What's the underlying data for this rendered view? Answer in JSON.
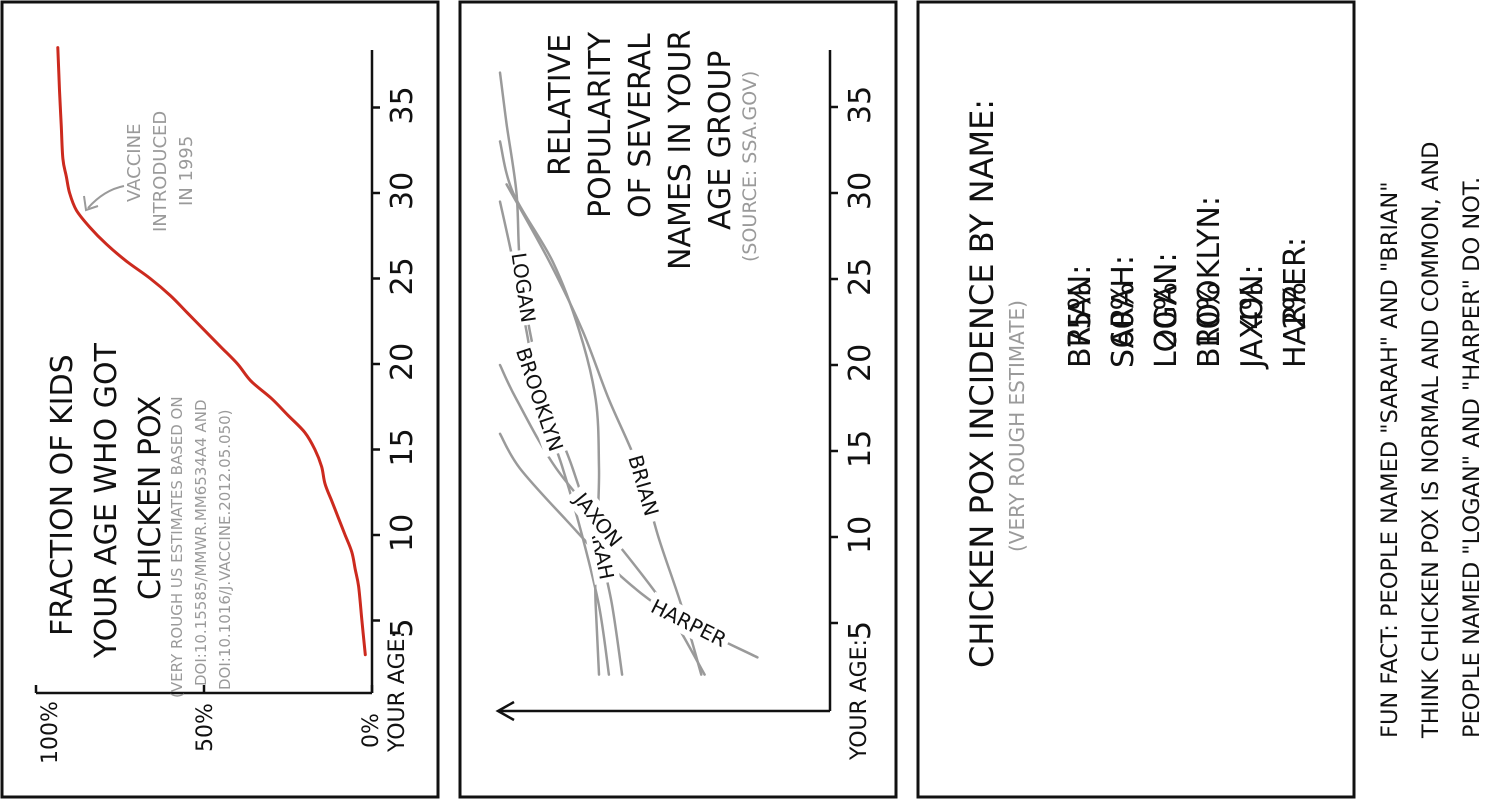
{
  "panel1": {
    "title_lines": [
      "FRACTION OF KIDS",
      "YOUR AGE WHO GOT",
      "CHICKEN POX"
    ],
    "note_lines": [
      "(VERY ROUGH US ESTIMATES BASED ON",
      "DOI:10.15585/MMWR.MM6534A4 AND",
      "DOI:10.1016/J.VACCINE.2012.05.050)"
    ],
    "annotation_lines": [
      "VACCINE",
      "INTRODUCED",
      "IN 1995"
    ],
    "axis_label": "YOUR AGE:",
    "y_tick_labels": [
      "0%",
      "50%",
      "100%"
    ],
    "line_color": "#cc2a1e"
  },
  "panel2": {
    "title_lines": [
      "RELATIVE",
      "POPULARITY",
      "OF SEVERAL",
      "NAMES IN YOUR",
      "AGE GROUP"
    ],
    "source": "(SOURCE: SSA.GOV)",
    "axis_label": "YOUR AGE:",
    "line_color": "#9a9a9a"
  },
  "panel3": {
    "title": "CHICKEN POX INCIDENCE BY NAME:",
    "subtitle": "(VERY ROUGH ESTIMATE)",
    "rows": [
      {
        "name": "BRIAN:",
        "value": "75%"
      },
      {
        "name": "SARAH:",
        "value": "60%"
      },
      {
        "name": "LOGAN:",
        "value": "20%"
      },
      {
        "name": "BROOKLYN:",
        "value": "10%"
      },
      {
        "name": "JAXON:",
        "value": "4%"
      },
      {
        "name": "HARPER:",
        "value": "2%"
      }
    ]
  },
  "fun_fact_lines": [
    "FUN FACT: PEOPLE NAMED \"SARAH\" AND \"BRIAN\"",
    "THINK CHICKEN POX IS NORMAL AND COMMON, AND",
    "PEOPLE NAMED \"LOGAN\" AND \"HARPER\" DO NOT."
  ],
  "chart_data": [
    {
      "type": "line",
      "orientation": "rotated 90deg counter-clockwise",
      "x_ticks": [
        5,
        10,
        15,
        20,
        25,
        30,
        35
      ],
      "y_ticks": [
        "0%",
        "50%",
        "100%"
      ],
      "xlim": [
        0,
        38
      ],
      "ylim": [
        0,
        100
      ],
      "series": [
        {
          "x": [
            3,
            5,
            7,
            8,
            9,
            10,
            11,
            12,
            13,
            14,
            15,
            16,
            17,
            18,
            19,
            20,
            21,
            22,
            23,
            24,
            25,
            26,
            27,
            28,
            29,
            30,
            31,
            32,
            34,
            36,
            38.5
          ],
          "y": [
            2,
            3,
            4,
            5,
            6,
            8,
            10,
            12,
            14,
            15,
            17,
            20,
            25,
            30,
            36,
            40,
            45,
            50,
            55,
            60,
            66,
            73,
            79,
            84,
            88,
            90,
            91,
            92,
            92.5,
            93,
            93.5
          ]
        }
      ]
    },
    {
      "type": "line",
      "orientation": "rotated 90deg counter-clockwise",
      "x_ticks": [
        5,
        10,
        15,
        20,
        25,
        30,
        35
      ],
      "xlim": [
        0,
        38
      ],
      "ylim": [
        0,
        100
      ],
      "series": [
        {
          "name": "BRIAN",
          "x": [
            2,
            6,
            10,
            14,
            18,
            22,
            26,
            30.5
          ],
          "y": [
            39,
            45,
            52,
            58,
            67,
            75,
            85,
            98
          ]
        },
        {
          "name": "SARAH",
          "x": [
            2,
            6,
            10,
            14,
            18,
            22,
            26,
            30,
            33
          ],
          "y": [
            63,
            66,
            70,
            70,
            71,
            76,
            84,
            96,
            100
          ]
        },
        {
          "name": "LOGAN",
          "x": [
            2,
            6,
            10,
            14,
            18,
            22,
            26,
            30,
            34,
            37
          ],
          "y": [
            70,
            71,
            72,
            78,
            86,
            91,
            94,
            95,
            98,
            100
          ]
        },
        {
          "name": "BROOKLYN",
          "x": [
            2,
            6,
            10,
            14,
            18,
            22,
            26,
            29.5
          ],
          "y": [
            67,
            70,
            75,
            81,
            88,
            92,
            96,
            100
          ]
        },
        {
          "name": "JAXON",
          "x": [
            2,
            6,
            10,
            14,
            18,
            20
          ],
          "y": [
            38,
            50,
            66,
            83,
            95,
            100
          ]
        },
        {
          "name": "HARPER",
          "x": [
            3,
            5.5,
            8,
            11,
            14,
            16
          ],
          "y": [
            22,
            48,
            65,
            80,
            94,
            100
          ]
        }
      ]
    }
  ]
}
